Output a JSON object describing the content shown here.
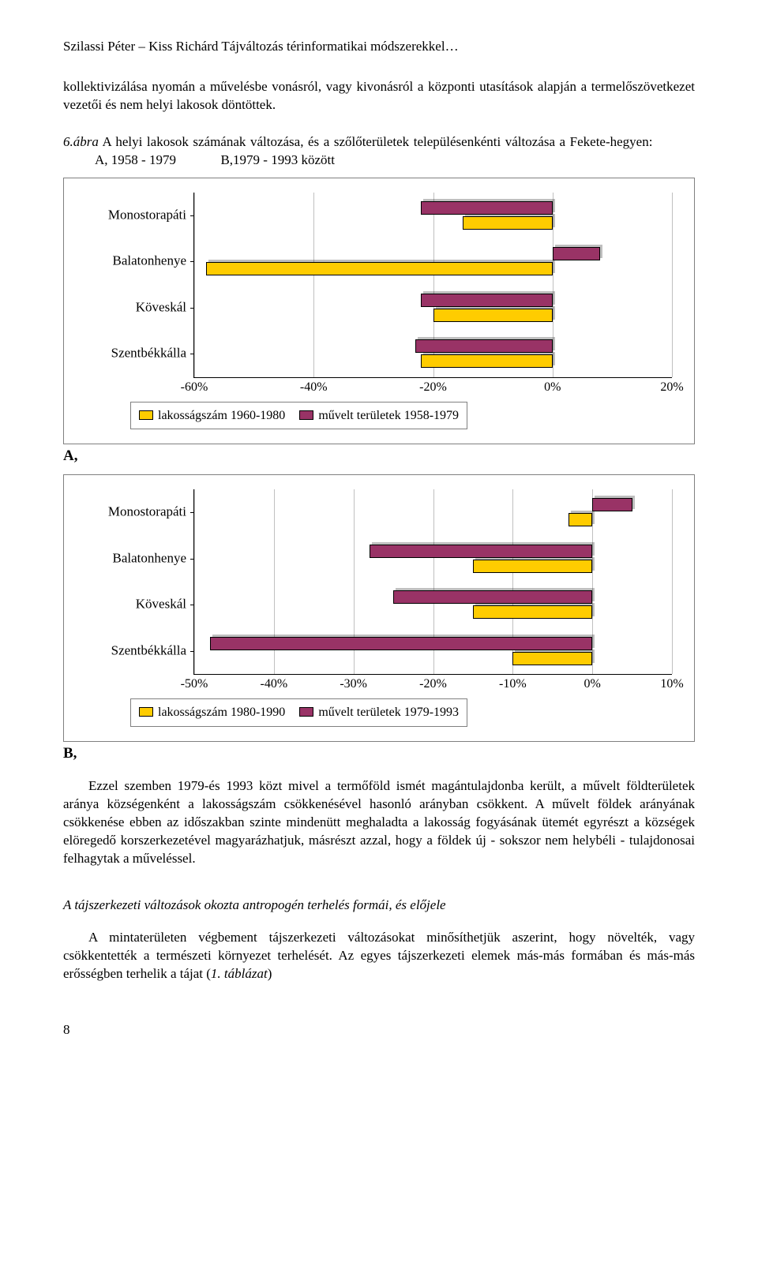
{
  "header": "Szilassi Péter – Kiss Richárd  Tájváltozás térinformatikai módszerekkel…",
  "intro": "kollektivizálása nyomán a művelésbe vonásról, vagy kivonásról a központi utasítások alapján a termelőszövetkezet vezetői és nem helyi lakosok döntöttek.",
  "caption_lead": "6.ábra",
  "caption_text": " A helyi lakosok számának változása, és a szőlőterületek településenkénti változása a Fekete-hegyen:",
  "caption_tail_a": "A, 1958 - 1979",
  "caption_tail_b": "B,1979 - 1993 között",
  "chartA": {
    "type": "bar",
    "orientation": "horizontal",
    "categories": [
      "Monostorapáti",
      "Balatonhenye",
      "Köveskál",
      "Szentbékkálla"
    ],
    "population": {
      "label": "lakosságszám 1960-1980",
      "color": "#ffcc00",
      "values": [
        -15,
        -58,
        -20,
        -22
      ]
    },
    "territory": {
      "label": "művelt területek 1958-1979",
      "color": "#993366",
      "values": [
        -22,
        8,
        -22,
        -23
      ]
    },
    "xlim": [
      -60,
      20
    ],
    "xtick_step": 20,
    "xtick_labels": [
      "-60%",
      "-40%",
      "-20%",
      "0%",
      "20%"
    ],
    "grid_color": "#c0c0c0",
    "border_color": "#808080",
    "background_color": "#ffffff",
    "title_fontsize": 16,
    "label_fontsize": 17
  },
  "panelA_tag": "A,",
  "chartB": {
    "type": "bar",
    "orientation": "horizontal",
    "categories": [
      "Monostorapáti",
      "Balatonhenye",
      "Köveskál",
      "Szentbékkálla"
    ],
    "population": {
      "label": "lakosságszám 1980-1990",
      "color": "#ffcc00",
      "values": [
        -3,
        -15,
        -15,
        -10
      ]
    },
    "territory": {
      "label": "művelt területek 1979-1993",
      "color": "#993366",
      "values": [
        5,
        -28,
        -25,
        -48
      ]
    },
    "xlim": [
      -50,
      10
    ],
    "xtick_step": 10,
    "xtick_labels": [
      "-50%",
      "-40%",
      "-30%",
      "-20%",
      "-10%",
      "0%",
      "10%"
    ],
    "grid_color": "#c0c0c0",
    "border_color": "#808080",
    "background_color": "#ffffff",
    "title_fontsize": 16,
    "label_fontsize": 17
  },
  "panelB_tag": "B,",
  "body1": "Ezzel szemben 1979-és 1993 közt mivel a termőföld ismét magántulajdonba került, a művelt földterületek aránya községenként a lakosságszám csökkenésével hasonló arányban csökkent. A művelt földek arányának csökkenése ebben az időszakban szinte mindenütt meghaladta a lakosság fogyásának ütemét egyrészt a községek elöregedő korszerkezetével magyarázhatjuk, másrészt azzal, hogy a földek új - sokszor nem helybéli - tulajdonosai felhagytak a műveléssel.",
  "section_title": "A tájszerkezeti változások okozta antropogén terhelés formái, és előjele",
  "body2_lead": "A mintaterületen végbement tájszerkezeti változásokat minősíthetjük aszerint, hogy növelték, vagy csökkentették a természeti környezet terhelését. Az egyes tájszerkezeti elemek más-más formában és más-más erősségben terhelik a tájat (",
  "body2_italic": "1. táblázat",
  "body2_tail": ")",
  "page_number": "8"
}
